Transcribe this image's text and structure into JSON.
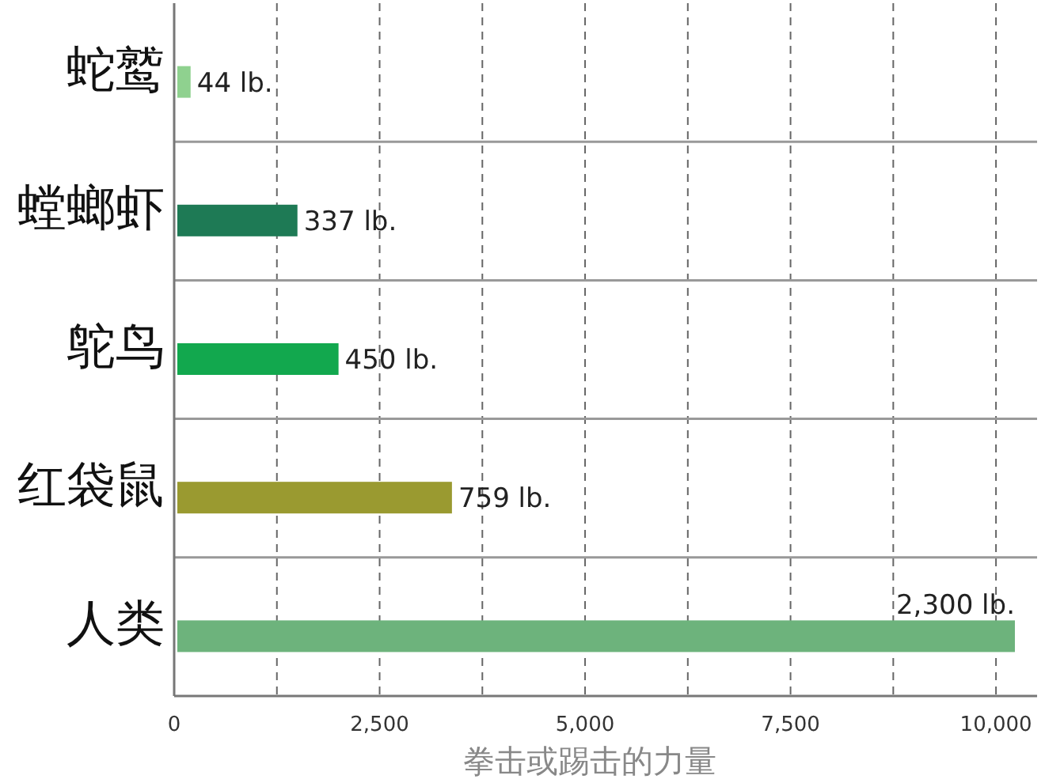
{
  "chart_data": {
    "type": "bar",
    "orientation": "horizontal",
    "xlabel": "拳击或踢击的力量",
    "categories": [
      "蛇鹫",
      "螳螂虾",
      "鸵鸟",
      "红袋鼠",
      "人类"
    ],
    "values": [
      200,
      1500,
      2000,
      3380,
      10230
    ],
    "colors": [
      "#8fd18f",
      "#1e7a55",
      "#12a84e",
      "#9a9a30",
      "#6db37c"
    ],
    "annotations": [
      {
        "text": "44 lb.",
        "x": 200,
        "y": "蛇鹫"
      },
      {
        "text": "337 lb.",
        "x": 1500,
        "y": "螳螂虾"
      },
      {
        "text": "450 lb.",
        "x": 2000,
        "y": "鸵鸟"
      },
      {
        "text": "759 lb.",
        "x": 3380,
        "y": "红袋鼠"
      },
      {
        "text": "2,300 lb.",
        "x": 10230,
        "y": "人类"
      }
    ],
    "xlim": [
      0,
      10500
    ],
    "xticks": [
      0,
      {
        "value": 1250,
        "label": null
      },
      {
        "value": 2500,
        "label": "2,500"
      },
      {
        "value": 3750,
        "label": null
      },
      {
        "value": 5000,
        "label": "5,000"
      },
      {
        "value": 6250,
        "label": null
      },
      {
        "value": 7500,
        "label": "7,500"
      },
      {
        "value": 8750,
        "label": null
      },
      {
        "value": 10000,
        "label": "10,000"
      }
    ],
    "grid": true
  }
}
